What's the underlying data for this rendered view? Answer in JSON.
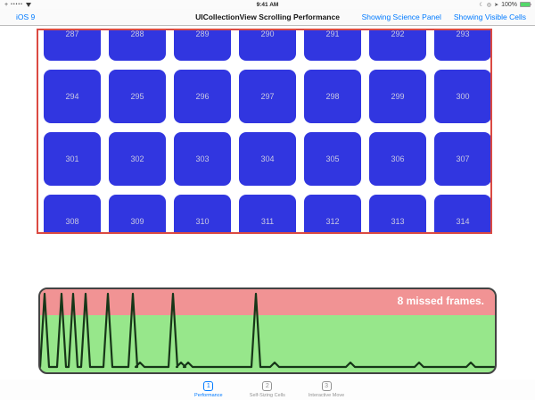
{
  "status_bar": {
    "time": "9:41 AM",
    "signal_dots": "•••••",
    "plus_glyph": "+",
    "battery_percent": "100%"
  },
  "nav_bar": {
    "back_label": "iOS 9",
    "title": "UICollectionView Scrolling Performance",
    "right_links": [
      "Showing Science Panel",
      "Showing Visible Cells"
    ]
  },
  "collection": {
    "cells": [
      287,
      288,
      289,
      290,
      291,
      292,
      293,
      294,
      295,
      296,
      297,
      298,
      299,
      300,
      301,
      302,
      303,
      304,
      305,
      306,
      307,
      308,
      309,
      310,
      311,
      312,
      313,
      314
    ],
    "columns": 7
  },
  "science_panel": {
    "annotation": "8 missed frames."
  },
  "chart_data": {
    "type": "line",
    "annotation": "8 missed frames.",
    "missed_frames": 8,
    "x_range": [
      0,
      510
    ],
    "y_range": [
      0,
      93
    ],
    "baseline_y": 87,
    "peak_top_y": 5,
    "red_zone_fraction": 0.31,
    "peaks_x": [
      5,
      24,
      37,
      51,
      76,
      104,
      149,
      242
    ],
    "peak_half_width": 5,
    "minor_bumps_x": [
      112,
      158,
      166,
      263,
      348,
      425,
      483
    ],
    "minor_bump_height": 5,
    "minor_bump_half_width": 5
  },
  "tab_bar": {
    "items": [
      {
        "number": "1",
        "label": "Performance",
        "active": true
      },
      {
        "number": "2",
        "label": "Self-Sizing Cells",
        "active": false
      },
      {
        "number": "3",
        "label": "Interactive Move",
        "active": false
      }
    ]
  },
  "colors": {
    "accent_blue": "#007AFF",
    "cell_blue": "#3136E0",
    "grid_border_red": "#DB4A42",
    "panel_pink": "#F19394",
    "panel_green": "#97E78B",
    "trace_line": "#173618",
    "battery_green": "#53D769"
  }
}
